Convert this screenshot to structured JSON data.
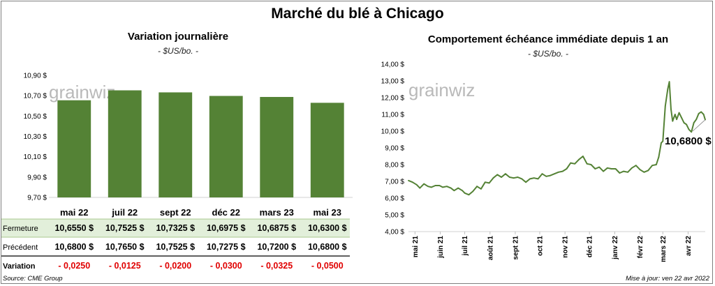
{
  "title": "Marché du blé à Chicago",
  "left": {
    "subtitle": "Variation journalière",
    "unit": "- $US/bo. -",
    "watermark": "grainwiz",
    "row_labels": {
      "close": "Fermeture",
      "prev": "Précédent",
      "change": "Variation"
    }
  },
  "right": {
    "subtitle": "Comportement échéance immédiate depuis 1 an",
    "unit": "- $US/bo. -",
    "watermark": "grainwiz",
    "annotation": "10,6800 $"
  },
  "footer": {
    "source": "Source: CME Group",
    "updated": "Mise à jour: ven 22 avr 2022"
  },
  "colors": {
    "bar": "#548235",
    "line": "#548235",
    "close_row_bg": "#e2efda",
    "negative": "#e00000"
  },
  "chart_data": [
    {
      "type": "bar",
      "title": "Variation journalière",
      "ylabel": "$US/bo.",
      "categories": [
        "mai 22",
        "juil 22",
        "sept 22",
        "déc 22",
        "mars 23",
        "mai 23"
      ],
      "series": [
        {
          "name": "Fermeture",
          "values": [
            10.655,
            10.7525,
            10.7325,
            10.6975,
            10.6875,
            10.63
          ]
        }
      ],
      "table": {
        "close": [
          "10,6550  $",
          "10,7525  $",
          "10,7325  $",
          "10,6975  $",
          "10,6875  $",
          "10,6300  $"
        ],
        "prev": [
          "10,6800  $",
          "10,7650  $",
          "10,7525  $",
          "10,7275  $",
          "10,7200  $",
          "10,6800  $"
        ],
        "change": [
          "- 0,0250",
          "- 0,0125",
          "- 0,0200",
          "- 0,0300",
          "- 0,0325",
          "- 0,0500"
        ]
      },
      "ylim": [
        9.7,
        10.9
      ],
      "yticks": [
        9.7,
        9.9,
        10.1,
        10.3,
        10.5,
        10.7,
        10.9
      ],
      "ytick_labels": [
        "9,70 $",
        "9,90 $",
        "10,10 $",
        "10,30 $",
        "10,50 $",
        "10,70 $",
        "10,90 $"
      ],
      "grid": false,
      "legend": "none"
    },
    {
      "type": "line",
      "title": "Comportement échéance immédiate depuis 1 an",
      "ylabel": "$US/bo.",
      "ylim": [
        4,
        14
      ],
      "yticks": [
        4,
        5,
        6,
        7,
        8,
        9,
        10,
        11,
        12,
        13,
        14
      ],
      "ytick_labels": [
        "4,00 $",
        "5,00 $",
        "6,00 $",
        "7,00 $",
        "8,00 $",
        "9,00 $",
        "10,00 $",
        "11,00 $",
        "12,00 $",
        "13,00 $",
        "14,00 $"
      ],
      "xlim": [
        "2021-04-23",
        "2022-04-22"
      ],
      "x_tick_labels": [
        "mai 21",
        "juin 21",
        "juil 21",
        "août 21",
        "sept 21",
        "oct 21",
        "nov 21",
        "déc 21",
        "janv 22",
        "févr 22",
        "mars 22",
        "avr 22"
      ],
      "x_tick_dates": [
        "2021-05-01",
        "2021-06-01",
        "2021-07-01",
        "2021-08-01",
        "2021-09-01",
        "2021-10-01",
        "2021-11-01",
        "2021-12-01",
        "2022-01-01",
        "2022-02-01",
        "2022-03-01",
        "2022-04-01"
      ],
      "series": [
        {
          "x": [
            "2021-04-23",
            "2021-04-28",
            "2021-05-03",
            "2021-05-07",
            "2021-05-12",
            "2021-05-17",
            "2021-05-21",
            "2021-05-26",
            "2021-05-31",
            "2021-06-04",
            "2021-06-09",
            "2021-06-14",
            "2021-06-18",
            "2021-06-23",
            "2021-06-28",
            "2021-07-01",
            "2021-07-06",
            "2021-07-11",
            "2021-07-16",
            "2021-07-21",
            "2021-07-26",
            "2021-07-31",
            "2021-08-05",
            "2021-08-10",
            "2021-08-15",
            "2021-08-20",
            "2021-08-25",
            "2021-08-30",
            "2021-09-04",
            "2021-09-09",
            "2021-09-14",
            "2021-09-19",
            "2021-09-24",
            "2021-09-29",
            "2021-10-04",
            "2021-10-09",
            "2021-10-14",
            "2021-10-19",
            "2021-10-24",
            "2021-10-29",
            "2021-11-03",
            "2021-11-08",
            "2021-11-13",
            "2021-11-18",
            "2021-11-23",
            "2021-11-28",
            "2021-12-03",
            "2021-12-08",
            "2021-12-13",
            "2021-12-18",
            "2021-12-23",
            "2021-12-28",
            "2022-01-02",
            "2022-01-07",
            "2022-01-12",
            "2022-01-17",
            "2022-01-22",
            "2022-01-27",
            "2022-02-01",
            "2022-02-06",
            "2022-02-11",
            "2022-02-16",
            "2022-02-21",
            "2022-02-24",
            "2022-02-27",
            "2022-03-01",
            "2022-03-04",
            "2022-03-07",
            "2022-03-09",
            "2022-03-11",
            "2022-03-13",
            "2022-03-16",
            "2022-03-18",
            "2022-03-21",
            "2022-03-24",
            "2022-03-27",
            "2022-03-30",
            "2022-04-02",
            "2022-04-05",
            "2022-04-08",
            "2022-04-11",
            "2022-04-14",
            "2022-04-17",
            "2022-04-20",
            "2022-04-22"
          ],
          "y": [
            7.05,
            6.95,
            6.8,
            6.6,
            6.85,
            6.7,
            6.65,
            6.75,
            6.75,
            6.65,
            6.7,
            6.6,
            6.45,
            6.6,
            6.45,
            6.3,
            6.2,
            6.4,
            6.7,
            6.55,
            6.95,
            6.9,
            7.2,
            7.4,
            7.25,
            7.45,
            7.25,
            7.2,
            7.25,
            7.15,
            6.95,
            7.15,
            7.2,
            7.15,
            7.45,
            7.3,
            7.35,
            7.45,
            7.55,
            7.6,
            7.75,
            8.1,
            8.05,
            8.3,
            8.5,
            8.05,
            8.0,
            7.75,
            7.85,
            7.6,
            7.8,
            7.75,
            7.75,
            7.5,
            7.6,
            7.55,
            7.8,
            7.95,
            7.7,
            7.55,
            7.65,
            7.95,
            8.0,
            8.45,
            9.3,
            9.4,
            11.5,
            12.5,
            12.95,
            11.3,
            10.6,
            11.0,
            10.7,
            11.1,
            10.8,
            10.5,
            10.4,
            10.1,
            9.95,
            10.5,
            10.7,
            11.05,
            11.15,
            11.0,
            10.68
          ]
        }
      ],
      "annotations": [
        {
          "text": "10,6800 $",
          "x": "2022-04-22",
          "y": 10.68
        }
      ],
      "grid": false,
      "legend": "none"
    }
  ]
}
